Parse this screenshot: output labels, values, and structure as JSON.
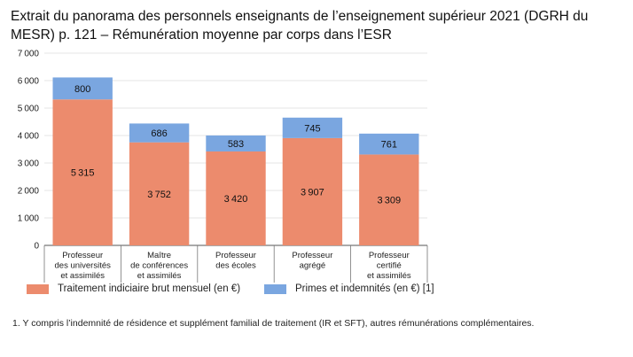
{
  "header": {
    "title": "Extrait du panorama des personnels enseignants de l’enseignement supérieur 2021 (DGRH du MESR) p. 121 – Rémunération moyenne par corps dans l’ESR"
  },
  "footnote": "1. Y compris l’indemnité de résidence et supplément familial de traitement (IR et SFT), autres rémunérations complémentaires.",
  "chart_data": {
    "type": "bar",
    "stacked": true,
    "categories": [
      [
        "Professeur",
        "des universités",
        "et assimilés"
      ],
      [
        "Maître",
        "de conférences",
        "et assimilés"
      ],
      [
        "Professeur",
        "des écoles"
      ],
      [
        "Professeur",
        "agrégé"
      ],
      [
        "Professeur",
        "certifié",
        "et assimilés"
      ]
    ],
    "series": [
      {
        "name": "Traitement indiciaire brut mensuel (en €)",
        "color": "#ec8b6d",
        "values": [
          5315,
          3752,
          3420,
          3907,
          3309
        ],
        "labels": [
          "5 315",
          "3 752",
          "3 420",
          "3 907",
          "3 309"
        ]
      },
      {
        "name": "Primes et indemnités (en €) [1]",
        "color": "#7aa6e0",
        "values": [
          800,
          686,
          583,
          745,
          761
        ],
        "labels": [
          "800",
          "686",
          "583",
          "745",
          "761"
        ]
      }
    ],
    "ylim": [
      0,
      7000
    ],
    "yticks": [
      0,
      1000,
      2000,
      3000,
      4000,
      5000,
      6000,
      7000
    ],
    "ytick_labels": [
      "0",
      "1 000",
      "2 000",
      "3 000",
      "4 000",
      "5 000",
      "6 000",
      "7 000"
    ],
    "grid": true,
    "legend_position": "bottom"
  }
}
